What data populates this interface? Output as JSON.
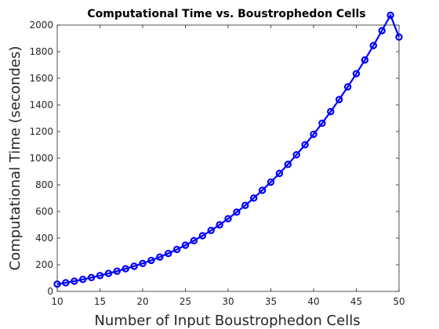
{
  "chart_data": {
    "type": "line",
    "title": "Computational Time vs. Boustrophedon Cells",
    "xlabel": "Number of Input Boustrophedon Cells",
    "ylabel": "Computational Time (secondes)",
    "xlim": [
      10,
      50
    ],
    "ylim": [
      0,
      2000
    ],
    "xticks": [
      10,
      15,
      20,
      25,
      30,
      35,
      40,
      45,
      50
    ],
    "yticks": [
      0,
      200,
      400,
      600,
      800,
      1000,
      1200,
      1400,
      1600,
      1800,
      2000
    ],
    "grid": false,
    "marker": "circle",
    "series_color": "#0000ff",
    "x": [
      10,
      11,
      12,
      13,
      14,
      15,
      16,
      17,
      18,
      19,
      20,
      21,
      22,
      23,
      24,
      25,
      26,
      27,
      28,
      29,
      30,
      31,
      32,
      33,
      34,
      35,
      36,
      37,
      38,
      39,
      40,
      41,
      42,
      43,
      44,
      45,
      46,
      47,
      48,
      49,
      50
    ],
    "series": [
      {
        "values": [
          55,
          65,
          77,
          90,
          104,
          119,
          135,
          152,
          170,
          189,
          210,
          233,
          258,
          285,
          315,
          347,
          381,
          418,
          458,
          500,
          546,
          595,
          646,
          701,
          759,
          821,
          886,
          954,
          1026,
          1101,
          1180,
          1263,
          1350,
          1441,
          1536,
          1635,
          1738,
          1846,
          1958,
          2074,
          1910
        ]
      }
    ]
  }
}
